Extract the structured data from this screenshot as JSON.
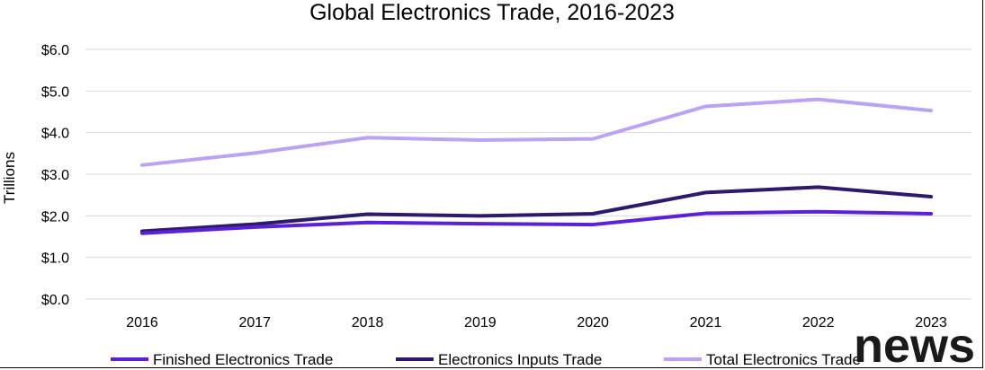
{
  "chart_data": {
    "type": "line",
    "title": "Global Electronics Trade, 2016-2023",
    "ylabel": "Trillions",
    "xlabel": "",
    "categories": [
      "2016",
      "2017",
      "2018",
      "2019",
      "2020",
      "2021",
      "2022",
      "2023"
    ],
    "y_ticks": [
      "$0.0",
      "$1.0",
      "$2.0",
      "$3.0",
      "$4.0",
      "$5.0",
      "$6.0"
    ],
    "ylim": [
      0,
      6
    ],
    "grid": true,
    "legend_position": "bottom",
    "series": [
      {
        "name": "Finished Electronics Trade",
        "color": "#5b21d6",
        "values": [
          1.58,
          1.73,
          1.84,
          1.81,
          1.79,
          2.06,
          2.1,
          2.05
        ]
      },
      {
        "name": "Electronics Inputs Trade",
        "color": "#2e1a6b",
        "values": [
          1.63,
          1.8,
          2.04,
          2.0,
          2.05,
          2.56,
          2.69,
          2.46
        ]
      },
      {
        "name": "Total Electronics Trade",
        "color": "#b9a3f2",
        "values": [
          3.22,
          3.51,
          3.88,
          3.82,
          3.85,
          4.63,
          4.8,
          4.53
        ]
      }
    ]
  },
  "watermark": "news"
}
